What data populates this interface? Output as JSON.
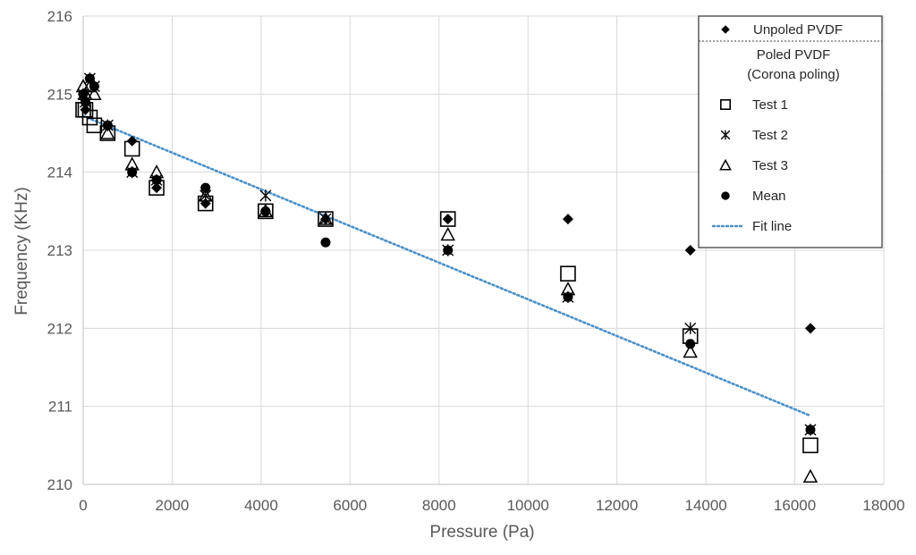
{
  "chart_data": {
    "type": "scatter",
    "title": "",
    "xlabel": "Pressure (Pa)",
    "ylabel": "Frequency (KHz)",
    "xlim": [
      0,
      18000
    ],
    "ylim": [
      210,
      216
    ],
    "x_ticks": [
      0,
      2000,
      4000,
      6000,
      8000,
      10000,
      12000,
      14000,
      16000,
      18000
    ],
    "y_ticks": [
      210,
      211,
      212,
      213,
      214,
      215,
      216
    ],
    "grid": true,
    "legend_position": "top-right",
    "legend": {
      "unpoled_label": "Unpoled PVDF",
      "poled_header_line1": "Poled PVDF",
      "poled_header_line2": "(Corona poling)",
      "fit_label": "Fit line"
    },
    "fit_line": {
      "name": "Fit line",
      "color": "#4a90c8",
      "x": [
        0,
        16350
      ],
      "y": [
        214.72,
        210.88
      ]
    },
    "series": [
      {
        "name": "Unpoled PVDF",
        "marker": "diamond",
        "x": [
          0,
          50,
          150,
          250,
          550,
          1100,
          1650,
          2750,
          4100,
          5450,
          8200,
          10900,
          13650,
          16350
        ],
        "y": [
          215.0,
          214.8,
          215.2,
          215.1,
          214.6,
          214.4,
          213.8,
          213.6,
          213.5,
          213.4,
          213.4,
          213.4,
          213.0,
          212.0
        ]
      },
      {
        "name": "Test 1",
        "marker": "square",
        "x": [
          0,
          50,
          150,
          250,
          550,
          1100,
          1650,
          2750,
          4100,
          5450,
          8200,
          10900,
          13650,
          16350
        ],
        "y": [
          214.8,
          214.8,
          214.7,
          214.6,
          214.5,
          214.3,
          213.8,
          213.6,
          213.5,
          213.4,
          213.4,
          212.7,
          211.9,
          210.5
        ]
      },
      {
        "name": "Test 2",
        "marker": "asterisk",
        "x": [
          0,
          50,
          150,
          250,
          550,
          1100,
          1650,
          2750,
          4100,
          5450,
          8200,
          10900,
          13650,
          16350
        ],
        "y": [
          215.0,
          214.9,
          215.2,
          215.1,
          214.6,
          214.0,
          213.9,
          213.7,
          213.7,
          213.4,
          213.0,
          212.4,
          212.0,
          210.7
        ]
      },
      {
        "name": "Test 3",
        "marker": "triangle",
        "x": [
          0,
          50,
          150,
          250,
          550,
          1100,
          1650,
          2750,
          4100,
          5450,
          8200,
          10900,
          13650,
          16350
        ],
        "y": [
          215.1,
          215.0,
          215.1,
          215.0,
          214.5,
          214.1,
          214.0,
          213.7,
          213.5,
          213.4,
          213.2,
          212.5,
          211.7,
          210.1
        ]
      },
      {
        "name": "Mean",
        "marker": "circle",
        "x": [
          0,
          50,
          150,
          250,
          550,
          1100,
          1650,
          2750,
          4100,
          5450,
          8200,
          10900,
          13650,
          16350
        ],
        "y": [
          215.0,
          214.9,
          215.2,
          215.1,
          214.6,
          214.0,
          213.9,
          213.8,
          213.5,
          213.1,
          213.0,
          212.4,
          211.8,
          210.7
        ]
      }
    ]
  }
}
